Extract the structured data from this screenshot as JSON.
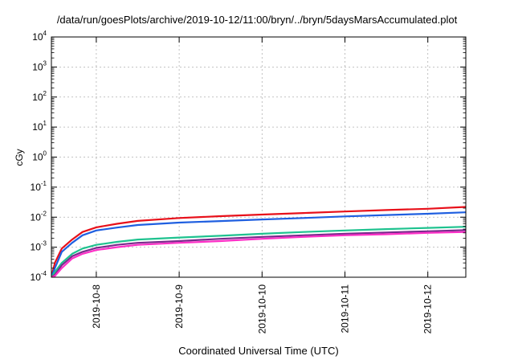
{
  "chart_data": {
    "type": "line",
    "title": "/data/run/goesPlots/archive/2019-10-12/11:00/bryn/../bryn/5daysMarsAccumulated.plot",
    "xlabel": "Coordinated Universal Time (UTC)",
    "ylabel": "cGy",
    "x_scale": "time",
    "y_scale": "log",
    "xlim": [
      "2019-10-07T11:00",
      "2019-10-12T11:00"
    ],
    "ylim": [
      0.0001,
      10000
    ],
    "grid": true,
    "legend": "none",
    "x_tick_labels": [
      "2019-10-8",
      "2019-10-9",
      "2019-10-10",
      "2019-10-11",
      "2019-10-12"
    ],
    "x_ticks": [
      "2019-10-08T00:00",
      "2019-10-09T00:00",
      "2019-10-10T00:00",
      "2019-10-11T00:00",
      "2019-10-12T00:00"
    ],
    "y_tick_labels": [
      {
        "base": "10",
        "exp": "4"
      },
      {
        "base": "10",
        "exp": "3"
      },
      {
        "base": "10",
        "exp": "2"
      },
      {
        "base": "10",
        "exp": "1"
      },
      {
        "base": "10",
        "exp": "0"
      },
      {
        "base": "10",
        "exp": "-1"
      },
      {
        "base": "10",
        "exp": "-2"
      },
      {
        "base": "10",
        "exp": "-3"
      },
      {
        "base": "10",
        "exp": "-4"
      }
    ],
    "y_ticks": [
      10000,
      1000,
      100,
      10,
      1,
      0.1,
      0.01,
      0.001,
      0.0001
    ],
    "x": [
      "2019-10-07T11:00",
      "2019-10-07T12:00",
      "2019-10-07T14:00",
      "2019-10-07T17:00",
      "2019-10-07T20:00",
      "2019-10-08T00:00",
      "2019-10-08T06:00",
      "2019-10-08T12:00",
      "2019-10-09T00:00",
      "2019-10-09T12:00",
      "2019-10-10T00:00",
      "2019-10-10T12:00",
      "2019-10-11T00:00",
      "2019-10-11T12:00",
      "2019-10-12T00:00",
      "2019-10-12T11:00"
    ],
    "series": [
      {
        "color": "#e8101a",
        "values": [
          0.0001,
          0.0003,
          0.0009,
          0.0018,
          0.0032,
          0.0046,
          0.006,
          0.0075,
          0.0094,
          0.0108,
          0.0122,
          0.0137,
          0.0154,
          0.0172,
          0.019,
          0.022
        ]
      },
      {
        "color": "#1f5fe0",
        "values": [
          0.0001,
          0.0002,
          0.0007,
          0.0014,
          0.0025,
          0.0036,
          0.0045,
          0.0055,
          0.0066,
          0.0074,
          0.0084,
          0.0094,
          0.0106,
          0.0118,
          0.013,
          0.0145
        ]
      },
      {
        "color": "#1fc28f",
        "values": [
          0.0001,
          0.00015,
          0.0003,
          0.0006,
          0.0009,
          0.0012,
          0.0015,
          0.0018,
          0.0021,
          0.0024,
          0.0028,
          0.0032,
          0.0036,
          0.004,
          0.0044,
          0.0048
        ]
      },
      {
        "color": "#7a2a8c",
        "values": [
          0.0001,
          0.00012,
          0.00025,
          0.0005,
          0.0007,
          0.00095,
          0.0012,
          0.0014,
          0.0016,
          0.0019,
          0.0022,
          0.0025,
          0.0028,
          0.0031,
          0.0034,
          0.0037
        ]
      },
      {
        "color": "#ff2fc7",
        "values": [
          0.0001,
          0.00011,
          0.0002,
          0.00042,
          0.0006,
          0.0008,
          0.001,
          0.0012,
          0.0014,
          0.0016,
          0.0019,
          0.0022,
          0.0025,
          0.0027,
          0.003,
          0.0032
        ]
      }
    ]
  }
}
